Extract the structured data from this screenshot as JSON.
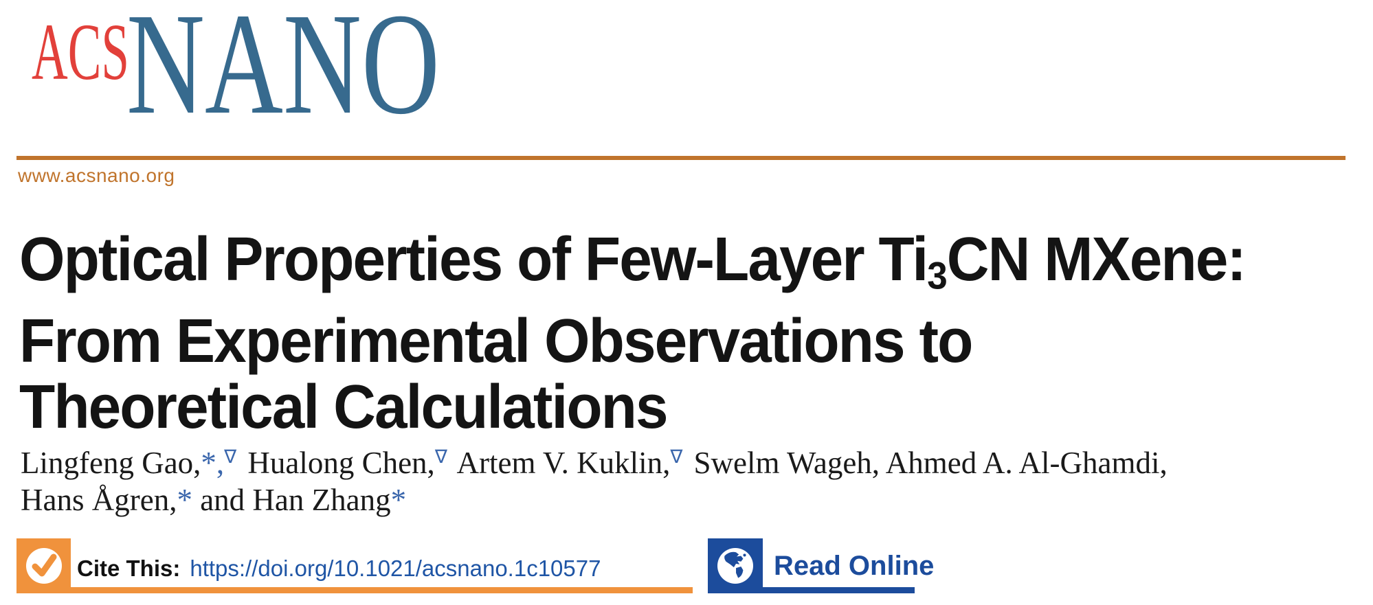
{
  "masthead": {
    "logo": {
      "acs": "ACS",
      "nano": "NANO"
    },
    "website": "www.acsnano.org"
  },
  "article": {
    "title": {
      "line1_pre": "Optical Properties of Few-Layer Ti",
      "line1_sub": "3",
      "line1_post": "CN MXene:",
      "line2": "From Experimental Observations to",
      "line3": "Theoretical Calculations"
    },
    "authors": {
      "line1": [
        {
          "text": "Lingfeng Gao,",
          "style": "name"
        },
        {
          "text": "*",
          "style": "marker"
        },
        {
          "text": ",",
          "style": "marker"
        },
        {
          "text": "∇",
          "style": "marker-sup"
        },
        {
          "text": " Hualong Chen,",
          "style": "name"
        },
        {
          "text": "∇",
          "style": "marker-sup"
        },
        {
          "text": " Artem V. Kuklin,",
          "style": "name"
        },
        {
          "text": "∇",
          "style": "marker-sup"
        },
        {
          "text": " Swelm Wageh, Ahmed A. Al-Ghamdi,",
          "style": "name"
        }
      ],
      "line2": [
        {
          "text": "Hans Ågren,",
          "style": "name"
        },
        {
          "text": "*",
          "style": "marker"
        },
        {
          "text": " and Han Zhang",
          "style": "name"
        },
        {
          "text": "*",
          "style": "marker"
        }
      ]
    }
  },
  "cite_bar": {
    "label": "Cite This:",
    "doi": "https://doi.org/10.1021/acsnano.1c10577",
    "icon": "checkmark-circle-icon"
  },
  "read_online": {
    "label": "Read Online",
    "icon": "globe-americas-icon"
  },
  "colors": {
    "logo_red": "#e2403a",
    "logo_blue": "#376a8e",
    "rule_orange": "#c0742c",
    "accent_orange": "#f0923c",
    "accent_blue": "#1c4c9c",
    "doi_blue": "#1f55a5",
    "author_marker_blue": "#3a66ac"
  }
}
